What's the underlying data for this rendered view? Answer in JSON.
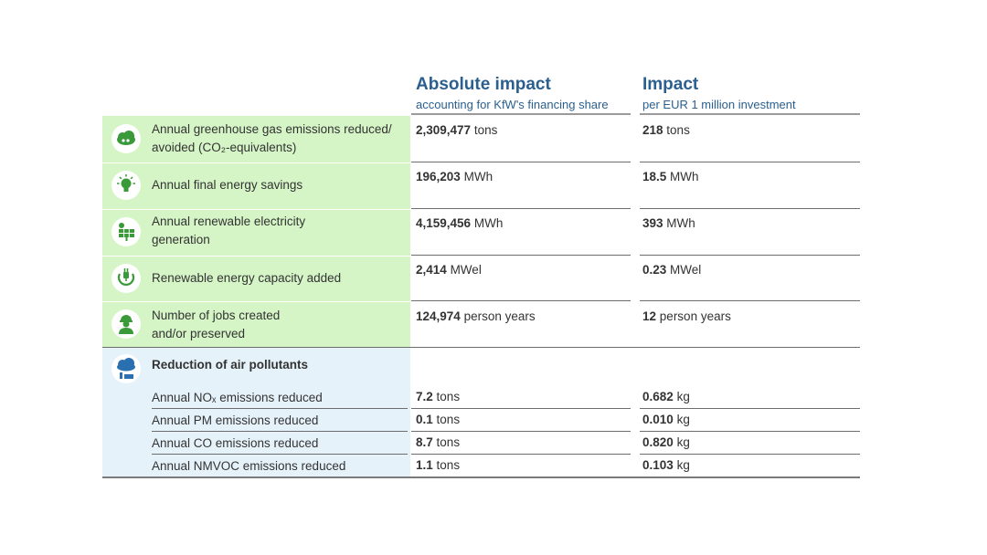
{
  "header": {
    "absolute": {
      "title": "Absolute impact",
      "subtitle": "accounting for KfW's financing share"
    },
    "relative": {
      "title": "Impact",
      "subtitle": "per EUR 1 million investment"
    }
  },
  "rows": [
    {
      "icon": "cloud-co2-icon",
      "label_line1": "Annual greenhouse gas emissions reduced/",
      "label_line2": "avoided (CO₂-equivalents)",
      "abs_num": "2,309,477",
      "abs_unit": "tons",
      "rel_num": "218",
      "rel_unit": "tons"
    },
    {
      "icon": "lightbulb-icon",
      "label_line1": "Annual final energy savings",
      "label_line2": "",
      "abs_num": "196,203",
      "abs_unit": "MWh",
      "rel_num": "18.5",
      "rel_unit": "MWh"
    },
    {
      "icon": "solar-panel-icon",
      "label_line1": "Annual renewable electricity",
      "label_line2": "generation",
      "abs_num": "4,159,456",
      "abs_unit": "MWh",
      "rel_num": "393",
      "rel_unit": "MWh"
    },
    {
      "icon": "plug-icon",
      "label_line1": "Renewable energy capacity added",
      "label_line2": "",
      "abs_num": "2,414",
      "abs_unit": "MWel",
      "rel_num": "0.23",
      "rel_unit": "MWel"
    },
    {
      "icon": "worker-icon",
      "label_line1": "Number of jobs created",
      "label_line2": "and/or preserved",
      "abs_num": "124,974",
      "abs_unit": "person years",
      "rel_num": "12",
      "rel_unit": "person years"
    }
  ],
  "pollutants": {
    "icon": "factory-cloud-icon",
    "title": "Reduction of air pollutants",
    "items": [
      {
        "label": "Annual NOₓ emissions reduced",
        "abs_num": "7.2",
        "abs_unit": "tons",
        "rel_num": "0.682",
        "rel_unit": "kg"
      },
      {
        "label": "Annual PM emissions reduced",
        "abs_num": "0.1",
        "abs_unit": "tons",
        "rel_num": "0.010",
        "rel_unit": "kg"
      },
      {
        "label": "Annual CO emissions reduced",
        "abs_num": "8.7",
        "abs_unit": "tons",
        "rel_num": "0.820",
        "rel_unit": "kg"
      },
      {
        "label": "Annual NMVOC emissions reduced",
        "abs_num": "1.1",
        "abs_unit": "tons",
        "rel_num": "0.103",
        "rel_unit": "kg"
      }
    ]
  },
  "colors": {
    "green_bg": "#d5f5c6",
    "blue_bg": "#e6f2fa",
    "heading": "#2a5f8f",
    "icon_green": "#3a9a3a",
    "icon_blue": "#2a6fb0"
  }
}
